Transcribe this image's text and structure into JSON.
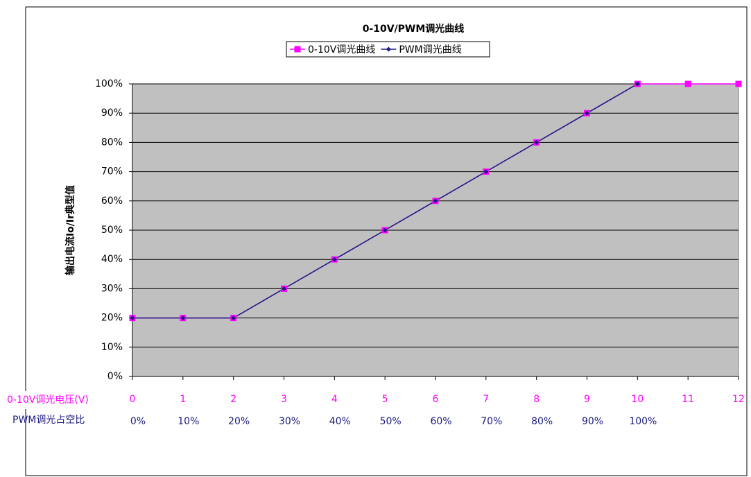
{
  "chart_data": {
    "type": "line",
    "title": "0-10V/PWM调光曲线",
    "ylabel": "输出电流Io/Ir典型值",
    "xlabel": "0-10V调光电压(V)",
    "x2label": "PWM调光占空比",
    "x": [
      0,
      1,
      2,
      3,
      4,
      5,
      6,
      7,
      8,
      9,
      10,
      11,
      12
    ],
    "xlim": [
      0,
      12
    ],
    "x2labels": [
      "0%",
      "10%",
      "20%",
      "30%",
      "40%",
      "50%",
      "60%",
      "70%",
      "80%",
      "90%",
      "100%"
    ],
    "ylim": [
      0,
      100
    ],
    "yticks": [
      {
        "value": 0,
        "label": "0%"
      },
      {
        "value": 10,
        "label": "10%"
      },
      {
        "value": 20,
        "label": "20%"
      },
      {
        "value": 30,
        "label": "30%"
      },
      {
        "value": 40,
        "label": "40%"
      },
      {
        "value": 50,
        "label": "50%"
      },
      {
        "value": 60,
        "label": "60%"
      },
      {
        "value": 70,
        "label": "70%"
      },
      {
        "value": 80,
        "label": "80%"
      },
      {
        "value": 90,
        "label": "90%"
      },
      {
        "value": 100,
        "label": "100%"
      }
    ],
    "grid": true,
    "legend": "top",
    "series": [
      {
        "name": "0-10V调光曲线",
        "color": "#ff00ff",
        "marker": "square",
        "values": [
          20,
          20,
          20,
          30,
          40,
          50,
          60,
          70,
          80,
          90,
          100,
          100,
          100
        ]
      },
      {
        "name": "PWM调光曲线",
        "color": "#1a1a80",
        "marker": "diamond",
        "values": [
          20,
          20,
          20,
          30,
          40,
          50,
          60,
          70,
          80,
          90,
          100,
          null,
          null
        ]
      }
    ]
  }
}
